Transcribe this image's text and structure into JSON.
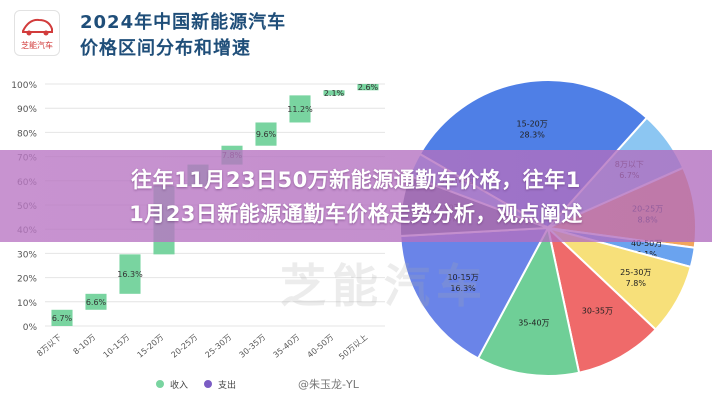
{
  "header": {
    "logo_text": "芝能汽车",
    "title_line1": "2024年中国新能源汽车",
    "title_line2": "价格区间分布和增速"
  },
  "banner": {
    "line1": "往年11月23日50万新能源通勤车价格，往年1",
    "line2": "1月23日新能源通勤车价格走势分析，观点阐述"
  },
  "watermark": "芝能汽车",
  "watermark_handle": "@朱玉龙-YL",
  "colors": {
    "income": "#79d4a0",
    "expense": "#7b5cc4",
    "title": "#1f4e79",
    "banner": "#b878c4"
  },
  "chart_data": [
    {
      "type": "bar",
      "subtype": "waterfall",
      "categories": [
        "8万以下",
        "8-10万",
        "10-15万",
        "15-20万",
        "20-25万",
        "25-30万",
        "30-35万",
        "35-40万",
        "40-50万",
        "50万以上"
      ],
      "values": [
        6.7,
        6.6,
        16.3,
        28.3,
        8.8,
        7.8,
        9.6,
        11.2,
        2.1,
        2.6
      ],
      "labels": [
        "6.7%",
        "6.6%",
        "16.3%",
        "",
        "",
        "7.8%",
        "9.6%",
        "11.2%",
        "2.1%",
        "2.6%"
      ],
      "yticks": [
        "0%",
        "10%",
        "20%",
        "30%",
        "40%",
        "50%",
        "60%",
        "70%",
        "80%",
        "90%",
        "100%"
      ],
      "ylim": [
        0,
        100
      ],
      "legend": [
        "收入",
        "支出"
      ],
      "legend_position": "bottom",
      "grid": true
    },
    {
      "type": "pie",
      "slices": [
        {
          "label": "15-20万",
          "value": 28.3,
          "text": "28.3%",
          "color": "#4f7fe6"
        },
        {
          "label": "8万以下",
          "value": 6.7,
          "text": "6.7%",
          "color": "#8cc6f2"
        },
        {
          "label": "20-25万",
          "value": 8.8,
          "text": "8.8%",
          "color": "#f2a55c"
        },
        {
          "label": "40-50万",
          "value": 2.1,
          "text": "2.1%",
          "color": "#6aa3ef"
        },
        {
          "label": "25-30万",
          "value": 7.8,
          "text": "7.8%",
          "color": "#f7e07a"
        },
        {
          "label": "30-35万",
          "value": 9.6,
          "text": "",
          "color": "#ef6a6a"
        },
        {
          "label": "35-40万",
          "value": 11.2,
          "text": "",
          "color": "#6fcf97"
        },
        {
          "label": "10-15万",
          "value": 16.3,
          "text": "16.3%",
          "color": "#6a84e8"
        },
        {
          "label": "8-10万",
          "value": 6.6,
          "text": "6.6%",
          "color": "#5e6b8a"
        },
        {
          "label": "50万以上",
          "value": 2.6,
          "text": "",
          "color": "#7fb0f5"
        }
      ]
    }
  ]
}
